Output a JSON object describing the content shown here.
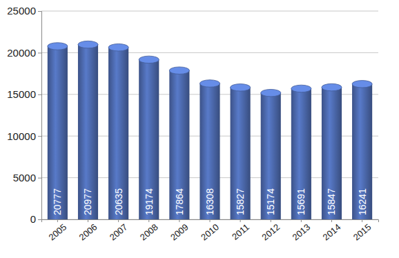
{
  "chart_data": {
    "type": "bar",
    "categories": [
      "2005",
      "2006",
      "2007",
      "2008",
      "2009",
      "2010",
      "2011",
      "2012",
      "2013",
      "2014",
      "2015"
    ],
    "values": [
      20777,
      20977,
      20635,
      19174,
      17864,
      16308,
      15827,
      15174,
      15691,
      15847,
      16241
    ],
    "color": "#4a66a8",
    "ylim": [
      0,
      25000
    ],
    "yticks": [
      0,
      5000,
      10000,
      15000,
      20000,
      25000
    ],
    "grid": true,
    "data_labels": true
  }
}
